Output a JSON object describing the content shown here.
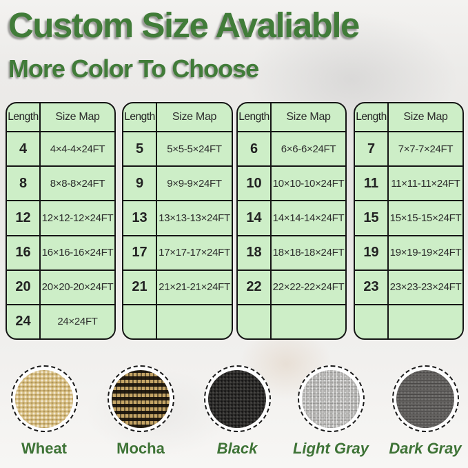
{
  "title": "Custom Size Avaliable",
  "subtitle": "More Color To Choose",
  "colors": {
    "heading_green": "#417c39",
    "label_green": "#3e7336",
    "table_bg": "#cdeec7",
    "table_border": "#151515"
  },
  "tables": [
    {
      "headers": [
        "Length",
        "Size Map"
      ],
      "rows": [
        [
          "4",
          "4×4-4×24FT"
        ],
        [
          "8",
          "8×8-8×24FT"
        ],
        [
          "12",
          "12×12-12×24FT"
        ],
        [
          "16",
          "16×16-16×24FT"
        ],
        [
          "20",
          "20×20-20×24FT"
        ],
        [
          "24",
          "24×24FT"
        ]
      ]
    },
    {
      "headers": [
        "Length",
        "Size Map"
      ],
      "rows": [
        [
          "5",
          "5×5-5×24FT"
        ],
        [
          "9",
          "9×9-9×24FT"
        ],
        [
          "13",
          "13×13-13×24FT"
        ],
        [
          "17",
          "17×17-17×24FT"
        ],
        [
          "21",
          "21×21-21×24FT"
        ],
        [
          "",
          ""
        ]
      ]
    },
    {
      "headers": [
        "Length",
        "Size Map"
      ],
      "rows": [
        [
          "6",
          "6×6-6×24FT"
        ],
        [
          "10",
          "10×10-10×24FT"
        ],
        [
          "14",
          "14×14-14×24FT"
        ],
        [
          "18",
          "18×18-18×24FT"
        ],
        [
          "22",
          "22×22-22×24FT"
        ],
        [
          "",
          ""
        ]
      ]
    },
    {
      "headers": [
        "Length",
        "Size Map"
      ],
      "rows": [
        [
          "7",
          "7×7-7×24FT"
        ],
        [
          "11",
          "11×11-11×24FT"
        ],
        [
          "15",
          "15×15-15×24FT"
        ],
        [
          "19",
          "19×19-19×24FT"
        ],
        [
          "23",
          "23×23-23×24FT"
        ],
        [
          "",
          ""
        ]
      ]
    }
  ],
  "swatches": [
    {
      "name": "wheat",
      "label": "Wheat",
      "base_color": "#d9c084",
      "italic": false
    },
    {
      "name": "mocha",
      "label": "Mocha",
      "base_color": "#c2a264",
      "italic": false
    },
    {
      "name": "black",
      "label": "Black",
      "base_color": "#2d2c2a",
      "italic": true
    },
    {
      "name": "light-gray",
      "label": "Light Gray",
      "base_color": "#b3b2b0",
      "italic": true
    },
    {
      "name": "dark-gray",
      "label": "Dark Gray",
      "base_color": "#615f5d",
      "italic": true
    }
  ]
}
